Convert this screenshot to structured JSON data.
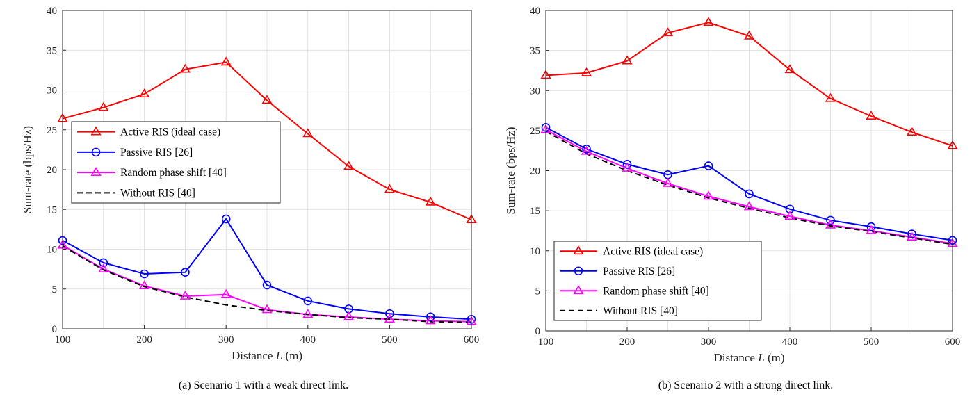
{
  "figures": [
    {
      "caption": "(a) Scenario 1 with a weak direct link.",
      "xlabel_prefix": "Distance ",
      "xlabel_var": "L",
      "xlabel_suffix": " (m)",
      "ylabel": "Sum-rate (bps/Hz)",
      "legend_entries": [
        "Active RIS (ideal case)",
        "Passive RIS [26]",
        "Random phase shift [40]",
        "Without RIS [40]"
      ]
    },
    {
      "caption": "(b) Scenario 2 with a strong direct link.",
      "xlabel_prefix": "Distance ",
      "xlabel_var": "L",
      "xlabel_suffix": " (m)",
      "ylabel": "Sum-rate (bps/Hz)",
      "legend_entries": [
        "Active RIS (ideal case)",
        "Passive RIS [26]",
        "Random phase shift [40]",
        "Without RIS [40]"
      ]
    }
  ],
  "chart_data": [
    {
      "type": "line",
      "xlabel": "Distance L (m)",
      "ylabel": "Sum-rate (bps/Hz)",
      "xlim": [
        100,
        600
      ],
      "ylim": [
        0,
        40
      ],
      "xticks": [
        100,
        200,
        300,
        400,
        500,
        600
      ],
      "yticks": [
        0,
        5,
        10,
        15,
        20,
        25,
        30,
        35,
        40
      ],
      "grid": true,
      "legend_position": "center-left",
      "x": [
        100,
        150,
        200,
        250,
        300,
        350,
        400,
        450,
        500,
        550,
        600
      ],
      "series": [
        {
          "name": "Active RIS (ideal case)",
          "color": "#ff0000",
          "marker": "triangle",
          "dash": "solid",
          "values": [
            26.4,
            27.8,
            29.5,
            32.6,
            33.5,
            28.7,
            24.5,
            20.4,
            17.5,
            15.9,
            13.7
          ]
        },
        {
          "name": "Passive RIS [26]",
          "color": "#0000ff",
          "marker": "circle",
          "dash": "solid",
          "values": [
            11.1,
            8.3,
            6.9,
            7.1,
            13.8,
            5.5,
            3.5,
            2.5,
            1.9,
            1.5,
            1.2
          ]
        },
        {
          "name": "Random phase shift [40]",
          "color": "#ff00ff",
          "marker": "triangle",
          "dash": "solid",
          "values": [
            10.5,
            7.5,
            5.4,
            4.1,
            4.3,
            2.4,
            1.8,
            1.5,
            1.2,
            1.0,
            0.9
          ]
        },
        {
          "name": "Without RIS [40]",
          "color": "#000000",
          "marker": "none",
          "dash": "dashed",
          "values": [
            10.4,
            7.4,
            5.3,
            4.0,
            3.0,
            2.3,
            1.8,
            1.4,
            1.2,
            0.9,
            0.8
          ]
        }
      ]
    },
    {
      "type": "line",
      "xlabel": "Distance L (m)",
      "ylabel": "Sum-rate (bps/Hz)",
      "xlim": [
        100,
        600
      ],
      "ylim": [
        0,
        40
      ],
      "xticks": [
        100,
        200,
        300,
        400,
        500,
        600
      ],
      "yticks": [
        0,
        5,
        10,
        15,
        20,
        25,
        30,
        35,
        40
      ],
      "grid": true,
      "legend_position": "bottom-left",
      "x": [
        100,
        150,
        200,
        250,
        300,
        350,
        400,
        450,
        500,
        550,
        600
      ],
      "series": [
        {
          "name": "Active RIS (ideal case)",
          "color": "#ff0000",
          "marker": "triangle",
          "dash": "solid",
          "values": [
            31.9,
            32.2,
            33.7,
            37.2,
            38.5,
            36.8,
            32.6,
            29.0,
            26.8,
            24.8,
            23.1
          ]
        },
        {
          "name": "Passive RIS [26]",
          "color": "#0000ff",
          "marker": "circle",
          "dash": "solid",
          "values": [
            25.4,
            22.7,
            20.8,
            19.5,
            20.6,
            17.1,
            15.2,
            13.8,
            13.0,
            12.1,
            11.3
          ]
        },
        {
          "name": "Random phase shift [40]",
          "color": "#ff00ff",
          "marker": "triangle",
          "dash": "solid",
          "values": [
            25.1,
            22.4,
            20.3,
            18.4,
            16.8,
            15.5,
            14.3,
            13.2,
            12.5,
            11.7,
            10.9
          ]
        },
        {
          "name": "Without RIS [40]",
          "color": "#000000",
          "marker": "none",
          "dash": "dashed",
          "values": [
            24.9,
            22.1,
            20.0,
            18.2,
            16.6,
            15.3,
            14.1,
            13.1,
            12.4,
            11.6,
            10.8
          ]
        }
      ]
    }
  ]
}
